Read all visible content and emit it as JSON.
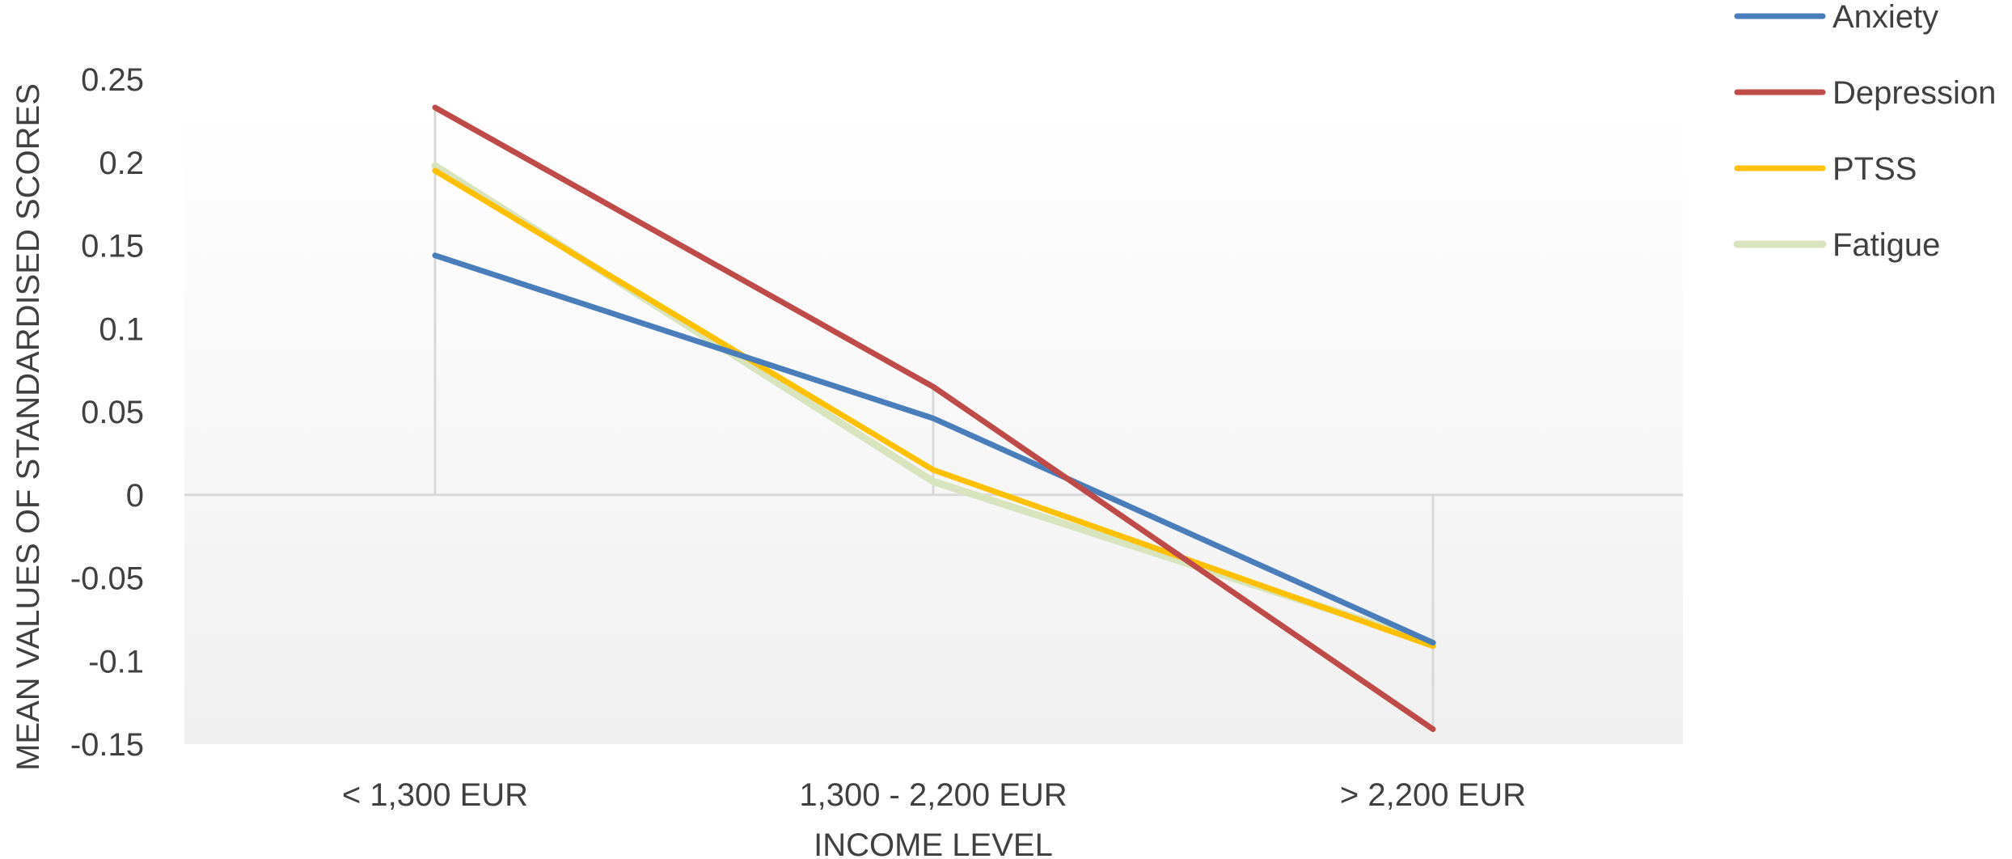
{
  "chart_data": {
    "type": "line",
    "title": "",
    "xlabel": "INCOME LEVEL",
    "ylabel": "MEAN VALUES OF STANDARDISED SCORES",
    "categories": [
      "< 1,300 EUR",
      "1,300  - 2,200 EUR",
      "> 2,200 EUR"
    ],
    "ylim": [
      -0.15,
      0.25
    ],
    "yticks": [
      0.25,
      0.2,
      0.15,
      0.1,
      0.05,
      0,
      -0.05,
      -0.1,
      -0.15
    ],
    "ytick_labels": [
      "0.25",
      "0.2",
      "0.15",
      "0.1",
      "0.05",
      "0",
      "-0.05",
      "-0.1",
      "-0.15"
    ],
    "grid": false,
    "legend_position": "right",
    "series": [
      {
        "name": "Anxiety",
        "values": [
          0.144,
          0.046,
          -0.089
        ],
        "color": "#4a7ebb"
      },
      {
        "name": "Depression",
        "values": [
          0.233,
          0.065,
          -0.141
        ],
        "color": "#be4b48"
      },
      {
        "name": "PTSS",
        "values": [
          0.195,
          0.015,
          -0.091
        ],
        "color": "#ffc000"
      },
      {
        "name": "Fatigue",
        "values": [
          0.198,
          0.008,
          -0.089
        ],
        "color": "#d7e4bd"
      }
    ]
  }
}
